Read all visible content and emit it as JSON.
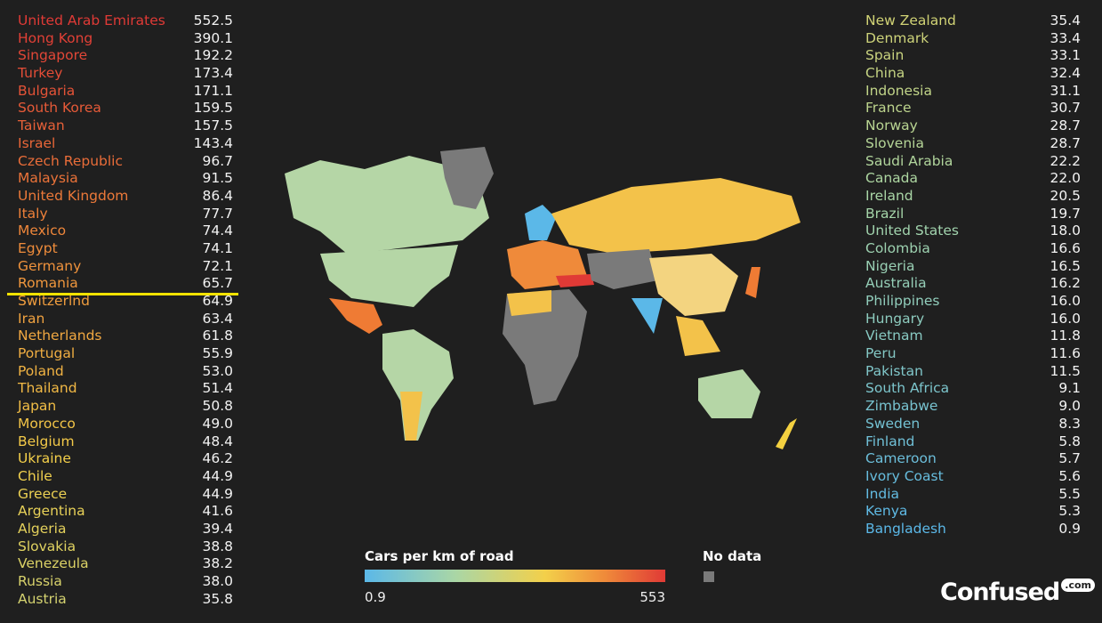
{
  "left": [
    {
      "name": "United Arab Emirates",
      "value": "552.5"
    },
    {
      "name": "Hong Kong",
      "value": "390.1"
    },
    {
      "name": "Singapore",
      "value": "192.2"
    },
    {
      "name": "Turkey",
      "value": "173.4"
    },
    {
      "name": "Bulgaria",
      "value": "171.1"
    },
    {
      "name": "South Korea",
      "value": "159.5"
    },
    {
      "name": "Taiwan",
      "value": "157.5"
    },
    {
      "name": "Israel",
      "value": "143.4"
    },
    {
      "name": "Czech Republic",
      "value": "96.7"
    },
    {
      "name": "Malaysia",
      "value": "91.5"
    },
    {
      "name": "United Kingdom",
      "value": "86.4"
    },
    {
      "name": "Italy",
      "value": "77.7"
    },
    {
      "name": "Mexico",
      "value": "74.4"
    },
    {
      "name": "Egypt",
      "value": "74.1"
    },
    {
      "name": "Germany",
      "value": "72.1"
    },
    {
      "name": "Romania",
      "value": "65.7"
    },
    {
      "name": "Switzerlnd",
      "value": "64.9"
    },
    {
      "name": "Iran",
      "value": "63.4"
    },
    {
      "name": "Netherlands",
      "value": "61.8"
    },
    {
      "name": "Portugal",
      "value": "55.9"
    },
    {
      "name": "Poland",
      "value": "53.0"
    },
    {
      "name": "Thailand",
      "value": "51.4"
    },
    {
      "name": "Japan",
      "value": "50.8"
    },
    {
      "name": "Morocco",
      "value": "49.0"
    },
    {
      "name": "Belgium",
      "value": "48.4"
    },
    {
      "name": "Ukraine",
      "value": "46.2"
    },
    {
      "name": "Chile",
      "value": "44.9"
    },
    {
      "name": "Greece",
      "value": "44.9"
    },
    {
      "name": "Argentina",
      "value": "41.6"
    },
    {
      "name": "Algeria",
      "value": "39.4"
    },
    {
      "name": "Slovakia",
      "value": "38.8"
    },
    {
      "name": "Venezeula",
      "value": "38.2"
    },
    {
      "name": "Russia",
      "value": "38.0"
    },
    {
      "name": "Austria",
      "value": "35.8"
    }
  ],
  "right": [
    {
      "name": "New Zealand",
      "value": "35.4"
    },
    {
      "name": "Denmark",
      "value": "33.4"
    },
    {
      "name": "Spain",
      "value": "33.1"
    },
    {
      "name": "China",
      "value": "32.4"
    },
    {
      "name": "Indonesia",
      "value": "31.1"
    },
    {
      "name": "France",
      "value": "30.7"
    },
    {
      "name": "Norway",
      "value": "28.7"
    },
    {
      "name": "Slovenia",
      "value": "28.7"
    },
    {
      "name": "Saudi Arabia",
      "value": "22.2"
    },
    {
      "name": "Canada",
      "value": "22.0"
    },
    {
      "name": "Ireland",
      "value": "20.5"
    },
    {
      "name": "Brazil",
      "value": "19.7"
    },
    {
      "name": "United States",
      "value": "18.0"
    },
    {
      "name": "Colombia",
      "value": "16.6"
    },
    {
      "name": "Nigeria",
      "value": "16.5"
    },
    {
      "name": "Australia",
      "value": "16.2"
    },
    {
      "name": "Philippines",
      "value": "16.0"
    },
    {
      "name": "Hungary",
      "value": "16.0"
    },
    {
      "name": "Vietnam",
      "value": "11.8"
    },
    {
      "name": "Peru",
      "value": "11.6"
    },
    {
      "name": "Pakistan",
      "value": "11.5"
    },
    {
      "name": "South Africa",
      "value": "9.1"
    },
    {
      "name": "Zimbabwe",
      "value": "9.0"
    },
    {
      "name": "Sweden",
      "value": "8.3"
    },
    {
      "name": "Finland",
      "value": "5.8"
    },
    {
      "name": "Cameroon",
      "value": "5.7"
    },
    {
      "name": "Ivory Coast",
      "value": "5.6"
    },
    {
      "name": "India",
      "value": "5.5"
    },
    {
      "name": "Kenya",
      "value": "5.3"
    },
    {
      "name": "Bangladesh",
      "value": "0.9"
    }
  ],
  "legend": {
    "title": "Cars per km of road",
    "min": "0.9",
    "max": "553",
    "no_data": "No data"
  },
  "logo": {
    "name": "Confused",
    "suffix": ".com"
  }
}
